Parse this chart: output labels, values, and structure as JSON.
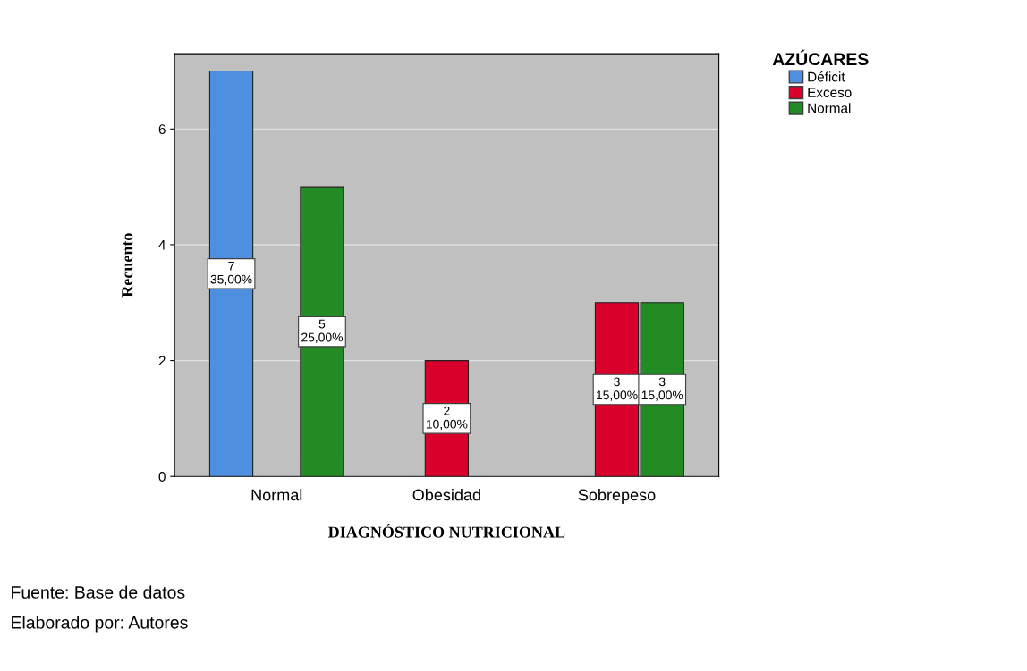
{
  "chart_data": {
    "type": "bar",
    "xlabel": "DIAGNÓSTICO NUTRICIONAL",
    "ylabel": "Recuento",
    "legend_title": "AZÚCARES",
    "categories": [
      "Normal",
      "Obesidad",
      "Sobrepeso"
    ],
    "series": [
      {
        "name": "Déficit",
        "color": "#4f8fdf",
        "values": [
          7,
          null,
          null
        ],
        "value_labels": [
          "7\n35,00%",
          null,
          null
        ]
      },
      {
        "name": "Exceso",
        "color": "#d9002b",
        "values": [
          null,
          2,
          3
        ],
        "value_labels": [
          null,
          "2\n10,00%",
          "3\n15,00%"
        ]
      },
      {
        "name": "Normal",
        "color": "#238b23",
        "values": [
          5,
          null,
          3
        ],
        "value_labels": [
          "5\n25,00%",
          null,
          "3\n15,00%"
        ]
      }
    ],
    "ylim": [
      0,
      7.3
    ],
    "yticks": [
      0,
      2,
      4,
      6
    ],
    "grid": "y",
    "legend": "top right",
    "annotations": [
      "Fuente: Base de datos",
      "Elaborado por: Autores"
    ]
  }
}
